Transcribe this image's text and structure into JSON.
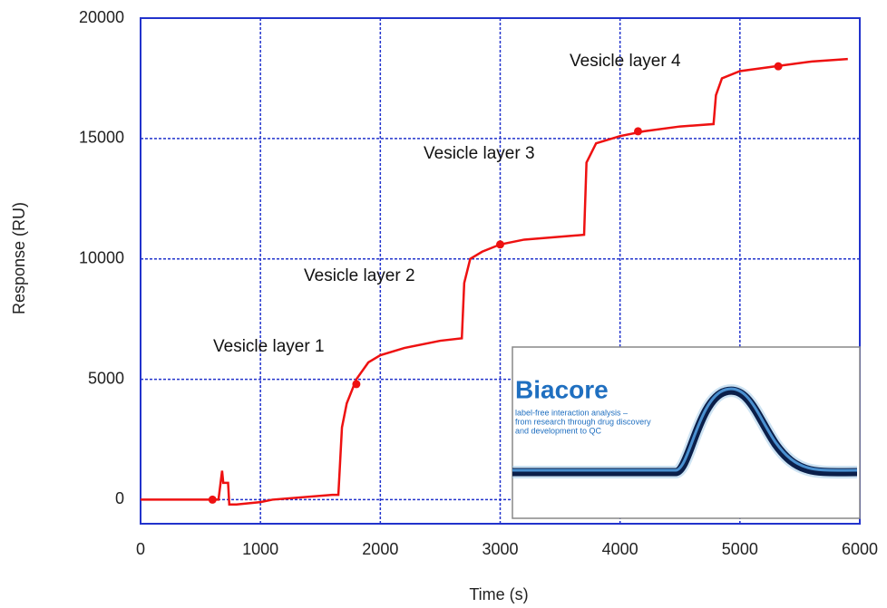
{
  "chart_data": {
    "type": "line",
    "x_label": "Time (s)",
    "y_label": "Response (RU)",
    "x": [
      0,
      600,
      650,
      670,
      680,
      690,
      730,
      740,
      800,
      1000,
      1100,
      1600,
      1650,
      1680,
      1720,
      1800,
      1900,
      2000,
      2200,
      2500,
      2680,
      2700,
      2750,
      2850,
      3000,
      3200,
      3700,
      3720,
      3800,
      4000,
      4200,
      4500,
      4780,
      4800,
      4850,
      5000,
      5300,
      5600,
      5900
    ],
    "values": [
      0,
      0,
      0,
      800,
      1200,
      700,
      700,
      -200,
      -200,
      -100,
      0,
      200,
      200,
      3000,
      4000,
      5000,
      5700,
      6000,
      6300,
      6600,
      6700,
      9000,
      10000,
      10300,
      10600,
      10800,
      11000,
      14000,
      14800,
      15100,
      15300,
      15500,
      15600,
      16800,
      17500,
      17800,
      18000,
      18200,
      18300
    ],
    "color": "#ee1111",
    "markers": {
      "x": [
        600,
        1800,
        3000,
        4150,
        5320
      ],
      "values": [
        0,
        4800,
        10600,
        15300,
        18000
      ]
    },
    "annotations": [
      "Vesicle layer 1",
      "Vesicle layer 2",
      "Vesicle layer 3",
      "Vesicle layer 4"
    ],
    "xlim": [
      0,
      6000
    ],
    "xticks": [
      0,
      1000,
      2000,
      3000,
      4000,
      5000,
      6000
    ],
    "ylim": [
      -1000,
      20000
    ],
    "yticks": [
      0,
      5000,
      10000,
      15000,
      20000
    ],
    "grid": true
  },
  "inset": {
    "title": "Biacore",
    "lines": [
      "label-free interaction analysis –",
      "from research through drug discovery",
      "and development to QC"
    ]
  }
}
